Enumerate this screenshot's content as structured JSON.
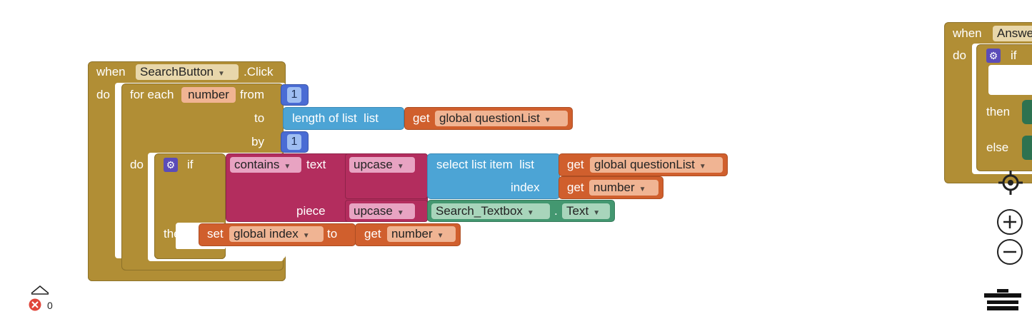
{
  "event_block": {
    "when": "when",
    "component": "SearchButton",
    "event": ".Click",
    "do": "do"
  },
  "foreach": {
    "for_each": "for each",
    "var": "number",
    "from": "from",
    "from_value": "1",
    "to": "to",
    "by": "by",
    "by_value": "1",
    "do": "do"
  },
  "length_block": {
    "label": "length of list  list",
    "get": "get",
    "var": "global questionList"
  },
  "if_block": {
    "if": "if",
    "then": "then"
  },
  "contains_block": {
    "op": "contains",
    "text": "text",
    "piece": "piece"
  },
  "upcase_1": {
    "op": "upcase"
  },
  "upcase_2": {
    "op": "upcase"
  },
  "select_block": {
    "label": "select list item  list",
    "index": "index",
    "get_list": "get",
    "list_var": "global questionList",
    "get_index": "get",
    "index_var": "number"
  },
  "textbox_getter": {
    "component": "Search_Textbox",
    "dot": ".",
    "property": "Text"
  },
  "set_block": {
    "set": "set",
    "var": "global index",
    "to": "to",
    "get": "get",
    "value": "number"
  },
  "right_block": {
    "when": "when",
    "component": "Answe",
    "do": "do",
    "if": "if",
    "then": "then",
    "else": "else"
  },
  "error_counter": {
    "count": "0"
  },
  "colors": {
    "control": "#b18e35",
    "math": "#4a6cd4",
    "list": "#4ca4d5",
    "variable": "#d05f2d",
    "text": "#b32d5e",
    "component": "#439770",
    "mutator": "#5b4cb8"
  }
}
